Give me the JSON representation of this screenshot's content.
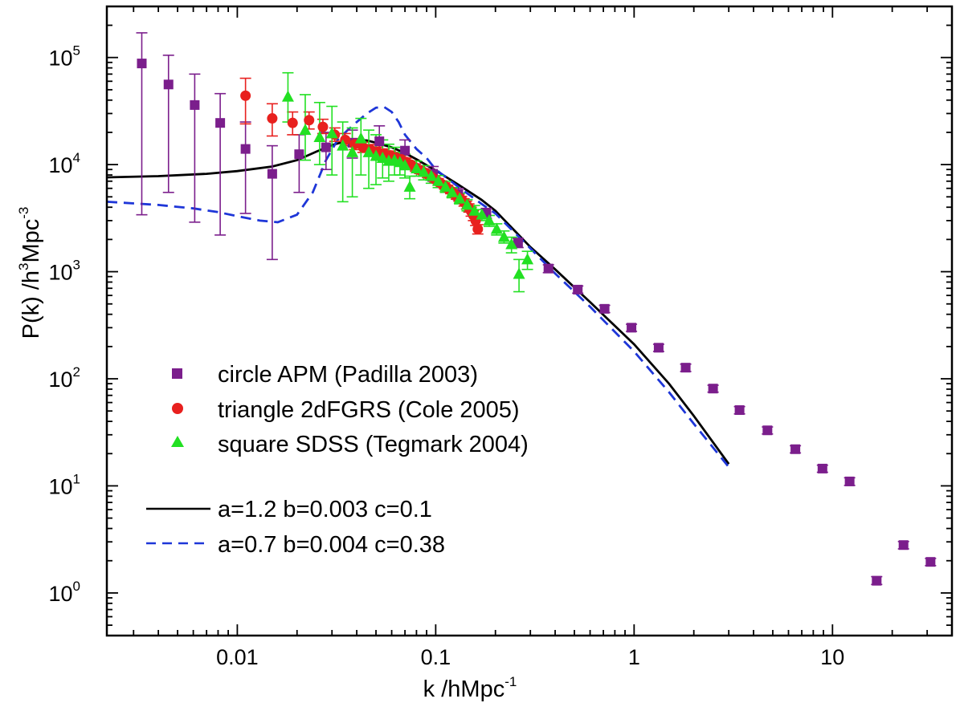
{
  "chart_data": {
    "type": "scatter",
    "x_scale": "log",
    "y_scale": "log",
    "xlim": [
      0.0022,
      40
    ],
    "ylim": [
      0.4,
      300000
    ],
    "grid": false,
    "legend_placement": "lower-left",
    "xlabel": {
      "main": "k /hMpc",
      "sup": "-1"
    },
    "ylabel": {
      "p1": "P(k) /h",
      "s1": "3",
      "p2": "Mpc",
      "s2": "-3"
    },
    "x_ticks": [
      {
        "value": 0.01,
        "label": "0.01"
      },
      {
        "value": 0.1,
        "label": "0.1"
      },
      {
        "value": 1,
        "label": "1"
      },
      {
        "value": 10,
        "label": "10"
      }
    ],
    "y_ticks": [
      {
        "value": 1,
        "base": "10",
        "exp": "0"
      },
      {
        "value": 10,
        "base": "10",
        "exp": "1"
      },
      {
        "value": 100,
        "base": "10",
        "exp": "2"
      },
      {
        "value": 1000,
        "base": "10",
        "exp": "3"
      },
      {
        "value": 10000,
        "base": "10",
        "exp": "4"
      },
      {
        "value": 100000,
        "base": "10",
        "exp": "5"
      }
    ],
    "series": [
      {
        "name": "circle  APM (Padilla 2003)",
        "marker": "square",
        "color": "#7B1E8C",
        "points": [
          [
            0.0033,
            88000,
            3400,
            170000
          ],
          [
            0.0045,
            56000,
            5500,
            105000
          ],
          [
            0.0061,
            36000,
            2900,
            70000
          ],
          [
            0.0082,
            24500,
            2200,
            46000
          ],
          [
            0.011,
            14000,
            3500,
            25000
          ],
          [
            0.015,
            8200,
            1300,
            15000
          ],
          [
            0.0205,
            12500,
            5500,
            19000
          ],
          [
            0.028,
            14500,
            9000,
            20000
          ],
          [
            0.038,
            16000,
            11500,
            21000
          ],
          [
            0.052,
            16500,
            12500,
            23000
          ],
          [
            0.07,
            13500,
            11000,
            17000
          ],
          [
            0.097,
            8200,
            7000,
            9600
          ],
          [
            0.13,
            5300,
            4700,
            6000
          ],
          [
            0.18,
            3500,
            3150,
            3900
          ],
          [
            0.26,
            1850,
            1680,
            2050
          ],
          [
            0.37,
            1070,
            980,
            1160
          ],
          [
            0.52,
            680,
            630,
            735
          ],
          [
            0.71,
            450,
            415,
            485
          ],
          [
            0.97,
            300,
            277,
            323
          ],
          [
            1.33,
            195,
            180,
            210
          ],
          [
            1.82,
            127,
            117,
            137
          ],
          [
            2.5,
            81,
            75,
            87
          ],
          [
            3.4,
            51,
            47,
            55
          ],
          [
            4.7,
            33,
            30.5,
            35.5
          ],
          [
            6.5,
            22,
            20.3,
            23.7
          ],
          [
            8.9,
            14.5,
            13.4,
            15.6
          ],
          [
            12.2,
            11,
            10.1,
            11.9
          ],
          [
            16.7,
            1.3,
            1.2,
            1.42
          ],
          [
            22.8,
            2.8,
            2.58,
            3.02
          ],
          [
            31.2,
            1.95,
            1.8,
            2.1
          ]
        ]
      },
      {
        "name": "triangle  2dFGRS (Cole 2005)",
        "marker": "circle",
        "color": "#E8201E",
        "points": [
          [
            0.011,
            44000,
            24000,
            64000
          ],
          [
            0.015,
            27000,
            18500,
            37000
          ],
          [
            0.019,
            24500,
            19000,
            31000
          ],
          [
            0.023,
            26000,
            21500,
            31000
          ],
          [
            0.027,
            22500,
            19500,
            26500
          ],
          [
            0.031,
            19000,
            16500,
            22000
          ],
          [
            0.035,
            17000,
            15000,
            19500
          ],
          [
            0.039,
            15500,
            13800,
            17500
          ],
          [
            0.043,
            14500,
            13000,
            16200
          ],
          [
            0.047,
            13800,
            12400,
            15400
          ],
          [
            0.051,
            13200,
            11900,
            14600
          ],
          [
            0.055,
            12700,
            11500,
            14000
          ],
          [
            0.059,
            12200,
            11100,
            13400
          ],
          [
            0.063,
            11700,
            10700,
            12800
          ],
          [
            0.067,
            11200,
            10300,
            12200
          ],
          [
            0.071,
            10600,
            9800,
            11500
          ],
          [
            0.075,
            10000,
            9250,
            10800
          ],
          [
            0.079,
            9400,
            8700,
            10150
          ],
          [
            0.083,
            8900,
            8250,
            9600
          ],
          [
            0.087,
            8500,
            7900,
            9150
          ],
          [
            0.091,
            8100,
            7550,
            8700
          ],
          [
            0.095,
            7700,
            7200,
            8250
          ],
          [
            0.099,
            7300,
            6800,
            7800
          ],
          [
            0.103,
            6900,
            6450,
            7400
          ],
          [
            0.107,
            6600,
            6150,
            7050
          ],
          [
            0.111,
            6300,
            5900,
            6750
          ],
          [
            0.115,
            6000,
            5600,
            6400
          ],
          [
            0.119,
            5700,
            5350,
            6100
          ],
          [
            0.123,
            5400,
            5050,
            5750
          ],
          [
            0.127,
            5100,
            4750,
            5450
          ],
          [
            0.131,
            4900,
            4550,
            5250
          ],
          [
            0.135,
            4700,
            4350,
            5050
          ],
          [
            0.139,
            4450,
            4100,
            4800
          ],
          [
            0.143,
            4200,
            3850,
            4550
          ],
          [
            0.147,
            3950,
            3600,
            4300
          ],
          [
            0.151,
            3650,
            3300,
            4000
          ],
          [
            0.155,
            3350,
            3000,
            3700
          ],
          [
            0.159,
            3000,
            2700,
            3300
          ],
          [
            0.163,
            2500,
            2250,
            2750
          ]
        ]
      },
      {
        "name": "square SDSS (Tegmark 2004)",
        "marker": "triangle",
        "color": "#22E022",
        "points": [
          [
            0.018,
            43000,
            25000,
            72000
          ],
          [
            0.022,
            21000,
            11000,
            45000
          ],
          [
            0.026,
            18000,
            10000,
            38000
          ],
          [
            0.03,
            19500,
            8000,
            35000
          ],
          [
            0.034,
            15000,
            4500,
            25000
          ],
          [
            0.038,
            13000,
            5000,
            22000
          ],
          [
            0.042,
            17500,
            8000,
            27000
          ],
          [
            0.046,
            13000,
            6000,
            21000
          ],
          [
            0.05,
            12000,
            6500,
            19000
          ],
          [
            0.054,
            11500,
            7500,
            17000
          ],
          [
            0.058,
            10800,
            7000,
            15500
          ],
          [
            0.062,
            11000,
            8000,
            14500
          ],
          [
            0.066,
            10500,
            8000,
            13000
          ],
          [
            0.07,
            9800,
            7500,
            12500
          ],
          [
            0.074,
            6200,
            4800,
            7800
          ],
          [
            0.08,
            9200,
            7800,
            10800
          ],
          [
            0.087,
            8500,
            7200,
            9800
          ],
          [
            0.095,
            7800,
            6700,
            8900
          ],
          [
            0.103,
            7000,
            6100,
            7900
          ],
          [
            0.112,
            6200,
            5500,
            7000
          ],
          [
            0.121,
            5500,
            4900,
            6100
          ],
          [
            0.132,
            4800,
            4300,
            5400
          ],
          [
            0.144,
            4200,
            3700,
            4700
          ],
          [
            0.157,
            3700,
            3300,
            4150
          ],
          [
            0.171,
            3400,
            3000,
            3800
          ],
          [
            0.186,
            3000,
            2650,
            3350
          ],
          [
            0.203,
            2500,
            2200,
            2800
          ],
          [
            0.221,
            2100,
            1850,
            2400
          ],
          [
            0.241,
            1800,
            1500,
            2100
          ],
          [
            0.263,
            950,
            650,
            1300
          ],
          [
            0.29,
            1300,
            1050,
            1550
          ]
        ]
      },
      {
        "name": "a=1.2  b=0.003  c=0.1",
        "marker": "line",
        "style": "solid",
        "color": "#000000",
        "points": [
          [
            0.0022,
            7600
          ],
          [
            0.004,
            7800
          ],
          [
            0.007,
            8200
          ],
          [
            0.01,
            8700
          ],
          [
            0.015,
            9600
          ],
          [
            0.02,
            11000
          ],
          [
            0.025,
            13200
          ],
          [
            0.03,
            15200
          ],
          [
            0.035,
            16500
          ],
          [
            0.04,
            17000
          ],
          [
            0.045,
            16800
          ],
          [
            0.05,
            16000
          ],
          [
            0.06,
            14500
          ],
          [
            0.07,
            12800
          ],
          [
            0.08,
            11200
          ],
          [
            0.1,
            8800
          ],
          [
            0.13,
            6500
          ],
          [
            0.17,
            4700
          ],
          [
            0.2,
            3700
          ],
          [
            0.3,
            1700
          ],
          [
            0.4,
            1050
          ],
          [
            0.6,
            520
          ],
          [
            1,
            210
          ],
          [
            1.5,
            90
          ],
          [
            2,
            45
          ],
          [
            3,
            16
          ]
        ]
      },
      {
        "name": "a=0.7  b=0.004  c=0.38",
        "marker": "line",
        "style": "dashed",
        "color": "#1E36D8",
        "points": [
          [
            0.0022,
            4500
          ],
          [
            0.004,
            4200
          ],
          [
            0.006,
            3900
          ],
          [
            0.008,
            3600
          ],
          [
            0.01,
            3300
          ],
          [
            0.013,
            3000
          ],
          [
            0.016,
            2900
          ],
          [
            0.02,
            3400
          ],
          [
            0.024,
            5500
          ],
          [
            0.028,
            11000
          ],
          [
            0.032,
            17000
          ],
          [
            0.036,
            21000
          ],
          [
            0.04,
            25000
          ],
          [
            0.045,
            30000
          ],
          [
            0.05,
            34000
          ],
          [
            0.055,
            34500
          ],
          [
            0.06,
            31000
          ],
          [
            0.065,
            25000
          ],
          [
            0.07,
            19000
          ],
          [
            0.08,
            14000
          ],
          [
            0.09,
            11500
          ],
          [
            0.1,
            9000
          ],
          [
            0.13,
            6200
          ],
          [
            0.17,
            4300
          ],
          [
            0.2,
            3500
          ],
          [
            0.3,
            1650
          ],
          [
            0.4,
            960
          ],
          [
            0.6,
            470
          ],
          [
            1,
            180
          ],
          [
            1.5,
            75
          ],
          [
            2,
            38
          ],
          [
            3,
            15
          ]
        ]
      }
    ]
  }
}
